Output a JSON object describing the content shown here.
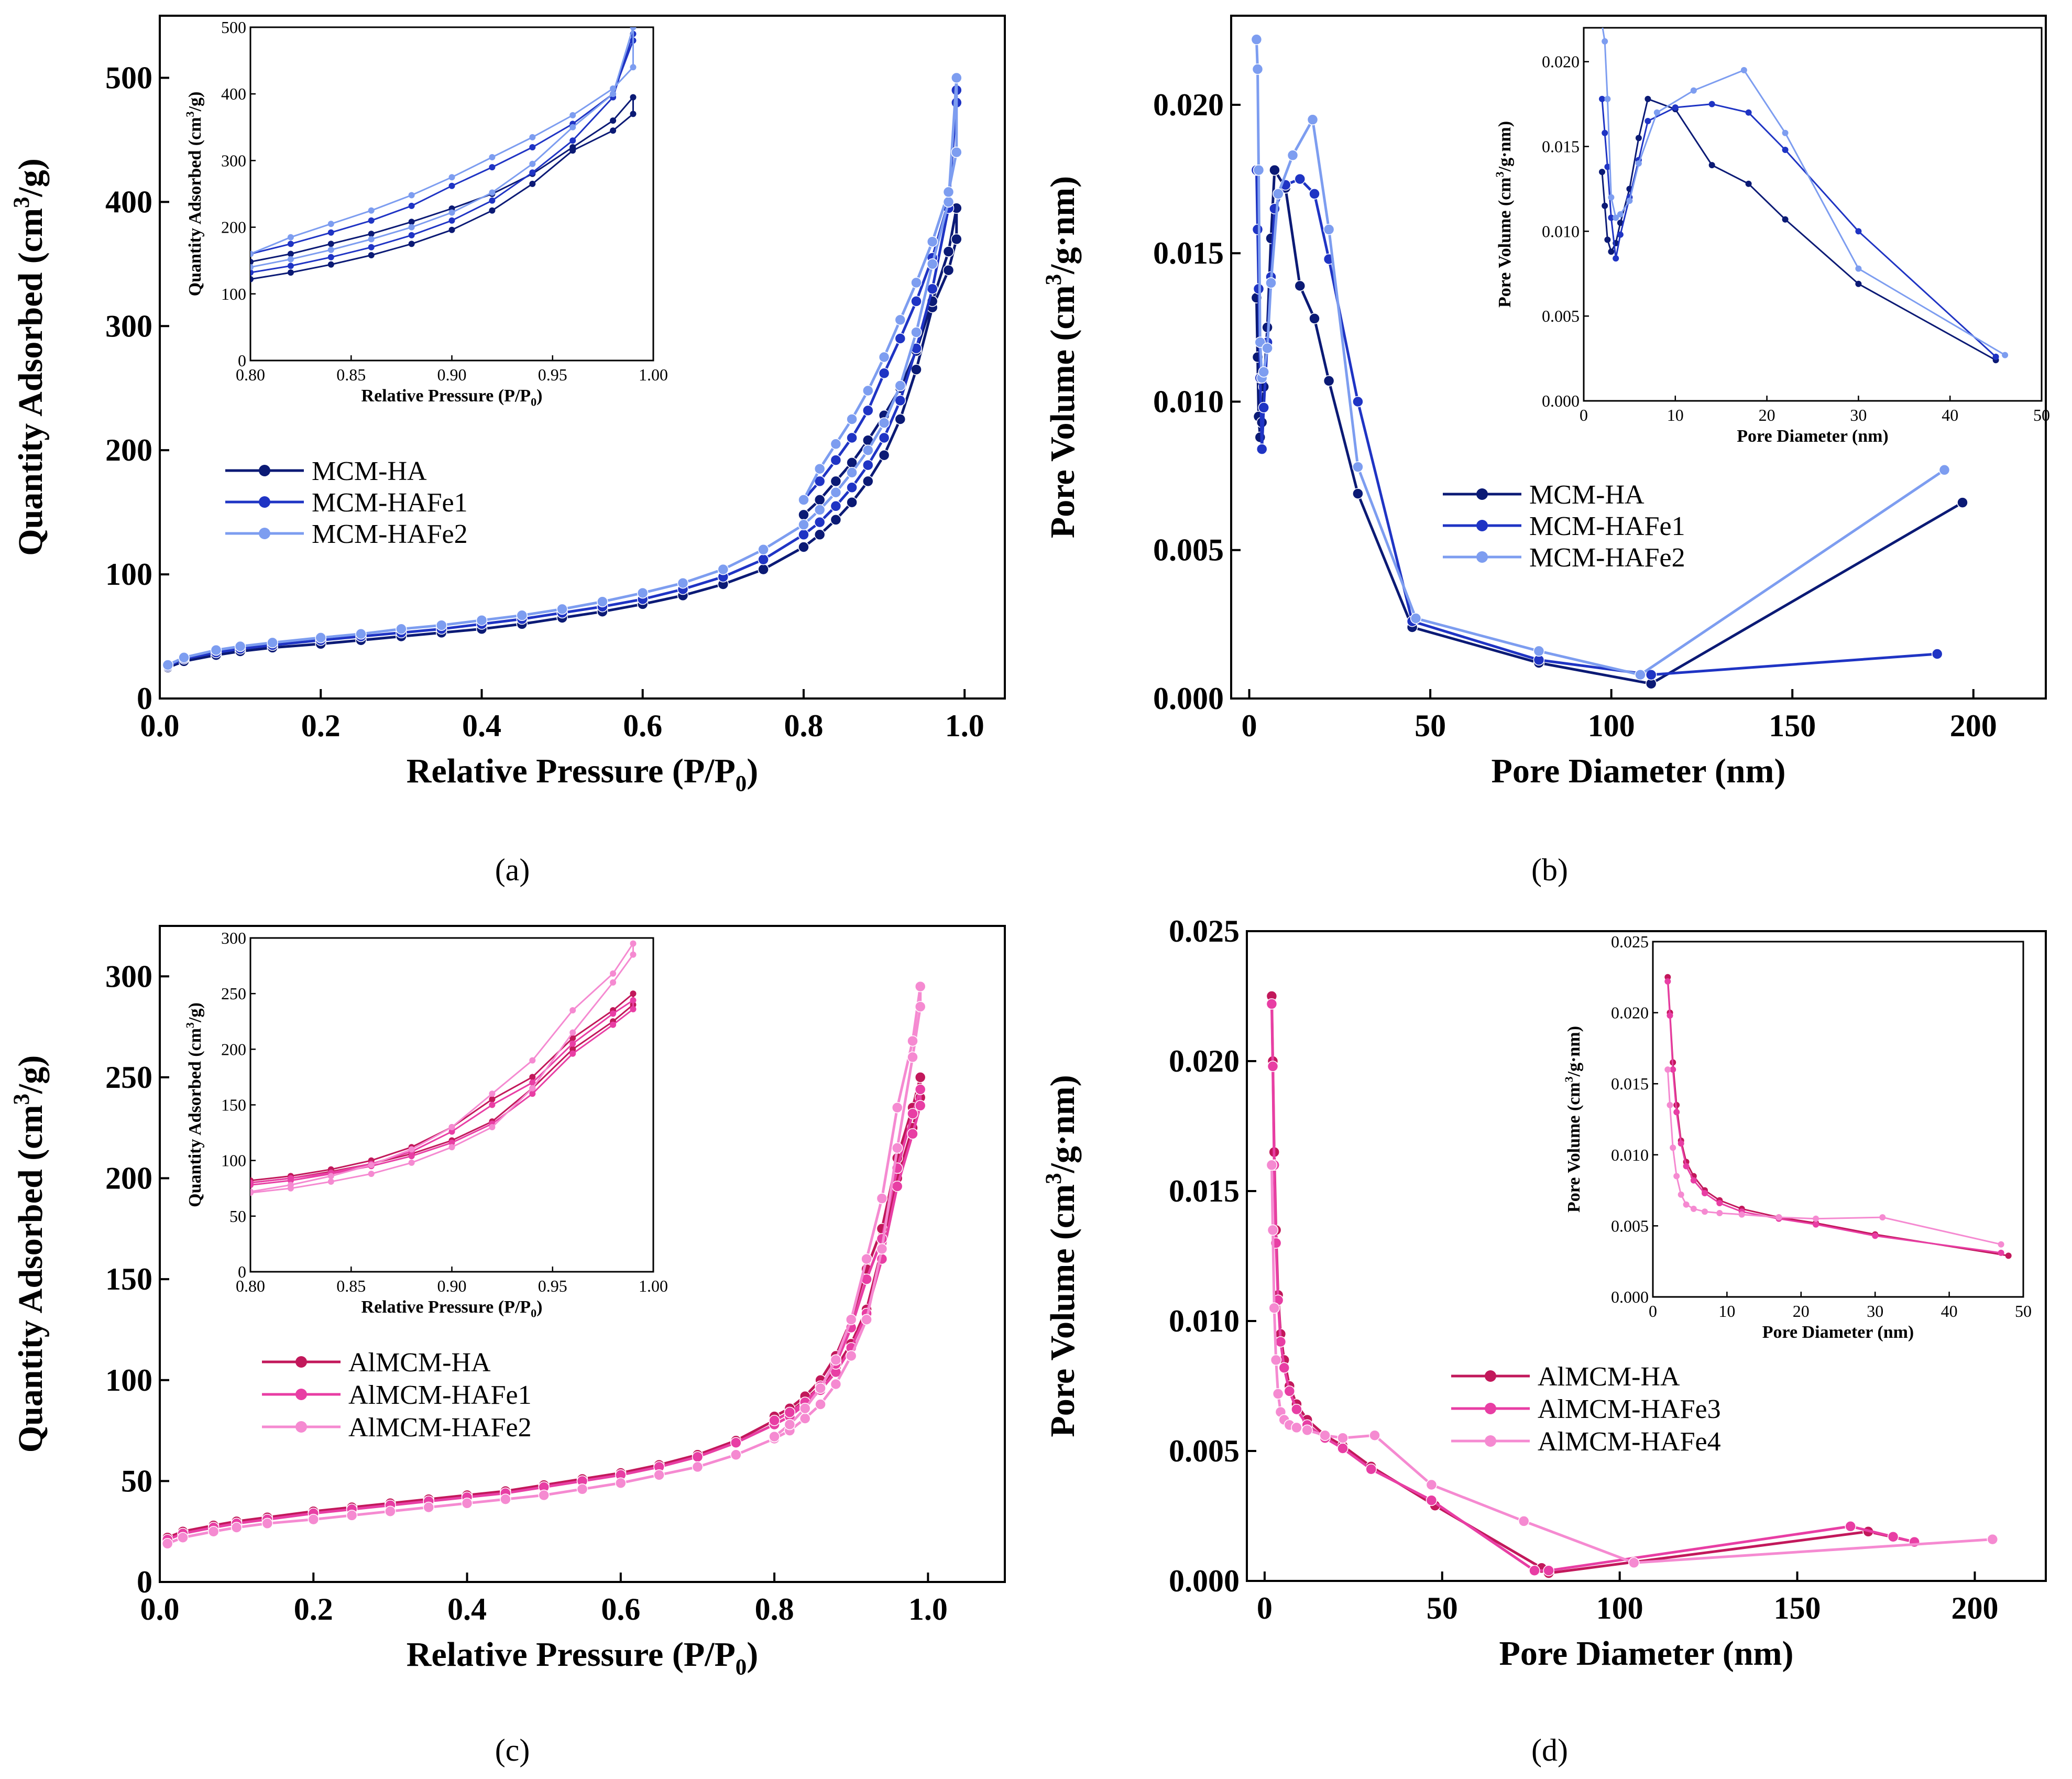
{
  "colors": {
    "mcm_ha": "#0b1a75",
    "mcm_hafe1": "#1f34c4",
    "mcm_hafe2": "#7d9df0",
    "al_ha": "#c2185b",
    "al_hafe1": "#e83ea4",
    "al_hafe2": "#f58ad1"
  },
  "panel_labels": {
    "a": "(a)",
    "b": "(b)",
    "c": "(c)",
    "d": "(d)"
  },
  "chart_data": [
    {
      "id": "a",
      "type": "line",
      "title": "",
      "xlabel": "Relative Pressure (P/P0)",
      "ylabel": "Quantity Adsorbed (cm3/g)",
      "xlim": [
        0,
        1.05
      ],
      "ylim": [
        0,
        550
      ],
      "xticks": [
        "0.0",
        "0.2",
        "0.4",
        "0.6",
        "0.8",
        "1.0"
      ],
      "yticks": [
        "0",
        "100",
        "200",
        "300",
        "400",
        "500"
      ],
      "legend": [
        "MCM-HA",
        "MCM-HAFe1",
        "MCM-HAFe2"
      ],
      "series": [
        {
          "name": "MCM-HA",
          "color_key": "mcm_ha",
          "x": [
            0.01,
            0.03,
            0.07,
            0.1,
            0.14,
            0.2,
            0.25,
            0.3,
            0.35,
            0.4,
            0.45,
            0.5,
            0.55,
            0.6,
            0.65,
            0.7,
            0.75,
            0.8,
            0.82,
            0.84,
            0.86,
            0.88,
            0.9,
            0.92,
            0.94,
            0.96,
            0.98,
            0.99,
            0.99,
            0.98,
            0.96,
            0.94,
            0.92,
            0.9,
            0.88,
            0.86,
            0.84,
            0.82,
            0.8
          ],
          "y": [
            25,
            30,
            35,
            38,
            41,
            44,
            47,
            50,
            53,
            56,
            60,
            65,
            70,
            76,
            83,
            92,
            104,
            122,
            132,
            144,
            158,
            175,
            196,
            225,
            265,
            315,
            345,
            370,
            395,
            360,
            320,
            280,
            250,
            228,
            208,
            190,
            175,
            160,
            148
          ]
        },
        {
          "name": "MCM-HAFe1",
          "color_key": "mcm_hafe1",
          "x": [
            0.01,
            0.03,
            0.07,
            0.1,
            0.14,
            0.2,
            0.25,
            0.3,
            0.35,
            0.4,
            0.45,
            0.5,
            0.55,
            0.6,
            0.65,
            0.7,
            0.75,
            0.8,
            0.82,
            0.84,
            0.86,
            0.88,
            0.9,
            0.92,
            0.94,
            0.96,
            0.98,
            0.99,
            0.99,
            0.98,
            0.96,
            0.94,
            0.92,
            0.9,
            0.88,
            0.86,
            0.84,
            0.82,
            0.8
          ],
          "y": [
            26,
            32,
            37,
            40,
            43,
            47,
            50,
            53,
            56,
            60,
            64,
            69,
            74,
            80,
            88,
            98,
            112,
            132,
            142,
            155,
            170,
            188,
            210,
            240,
            282,
            330,
            395,
            490,
            480,
            400,
            355,
            320,
            290,
            262,
            232,
            210,
            192,
            175,
            160
          ]
        },
        {
          "name": "MCM-HAFe2",
          "color_key": "mcm_hafe2",
          "x": [
            0.01,
            0.03,
            0.07,
            0.1,
            0.14,
            0.2,
            0.25,
            0.3,
            0.35,
            0.4,
            0.45,
            0.5,
            0.55,
            0.6,
            0.65,
            0.7,
            0.75,
            0.8,
            0.82,
            0.84,
            0.86,
            0.88,
            0.9,
            0.92,
            0.94,
            0.96,
            0.98,
            0.99,
            0.99,
            0.98,
            0.96,
            0.94,
            0.92,
            0.9,
            0.88,
            0.86,
            0.84,
            0.82,
            0.8
          ],
          "y": [
            27,
            33,
            39,
            42,
            45,
            49,
            52,
            56,
            59,
            63,
            67,
            72,
            78,
            85,
            93,
            104,
            120,
            140,
            152,
            166,
            182,
            200,
            222,
            252,
            295,
            350,
            400,
            500,
            440,
            408,
            368,
            335,
            305,
            275,
            248,
            225,
            205,
            185,
            160
          ]
        }
      ],
      "inset": {
        "xlim": [
          0.8,
          1.0
        ],
        "ylim": [
          0,
          500
        ],
        "xticks": [
          "0.80",
          "0.85",
          "0.90",
          "0.95",
          "1.00"
        ],
        "yticks": [
          "0",
          "100",
          "200",
          "300",
          "400",
          "500"
        ],
        "xlabel": "Relative Pressure (P/P0)",
        "ylabel": "Quantity Adsorbed (cm3/g)"
      }
    },
    {
      "id": "b",
      "type": "line",
      "title": "",
      "xlabel": "Pore Diameter (nm)",
      "ylabel": "Pore Volume (cm3/g·nm)",
      "xlim": [
        -5,
        220
      ],
      "ylim": [
        0,
        0.023
      ],
      "xticks": [
        "0",
        "50",
        "100",
        "150",
        "200"
      ],
      "yticks": [
        "0.000",
        "0.005",
        "0.010",
        "0.015",
        "0.020"
      ],
      "legend": [
        "MCM-HA",
        "MCM-HAFe1",
        "MCM-HAFe2"
      ],
      "series": [
        {
          "name": "MCM-HA",
          "color_key": "mcm_ha",
          "x": [
            2,
            2.3,
            2.6,
            3,
            3.5,
            4,
            5,
            6,
            7,
            10,
            14,
            18,
            22,
            30,
            45,
            80,
            111,
            197
          ],
          "y": [
            0.0135,
            0.0115,
            0.0095,
            0.0088,
            0.0093,
            0.0105,
            0.0125,
            0.0155,
            0.0178,
            0.0172,
            0.0139,
            0.0128,
            0.0107,
            0.0069,
            0.0024,
            0.0012,
            0.0005,
            0.0066
          ]
        },
        {
          "name": "MCM-HAFe1",
          "color_key": "mcm_hafe1",
          "x": [
            2,
            2.3,
            2.6,
            3,
            3.5,
            4,
            5,
            6,
            7,
            10,
            14,
            18,
            22,
            30,
            45,
            80,
            111,
            190
          ],
          "y": [
            0.0178,
            0.0158,
            0.0138,
            0.0108,
            0.0084,
            0.0098,
            0.012,
            0.0142,
            0.0165,
            0.0173,
            0.0175,
            0.017,
            0.0148,
            0.01,
            0.0026,
            0.0013,
            0.0008,
            0.0015
          ]
        },
        {
          "name": "MCM-HAFe2",
          "color_key": "mcm_hafe2",
          "x": [
            2,
            2.3,
            2.6,
            3,
            3.5,
            4,
            5,
            6,
            8,
            12,
            17.5,
            22,
            30,
            46,
            80,
            108,
            192
          ],
          "y": [
            0.0222,
            0.0212,
            0.0178,
            0.012,
            0.0108,
            0.011,
            0.0118,
            0.014,
            0.017,
            0.0183,
            0.0195,
            0.0158,
            0.0078,
            0.0027,
            0.0016,
            0.0008,
            0.0077
          ]
        }
      ],
      "inset": {
        "xlim": [
          0,
          50
        ],
        "ylim": [
          0,
          0.022
        ],
        "xticks": [
          "0",
          "10",
          "20",
          "30",
          "40",
          "50"
        ],
        "yticks": [
          "0.000",
          "0.005",
          "0.010",
          "0.015",
          "0.020"
        ],
        "xlabel": "Pore Diameter (nm)",
        "ylabel": "Pore Volume (cm3/g·nm)"
      }
    },
    {
      "id": "c",
      "type": "line",
      "title": "",
      "xlabel": "Relative Pressure (P/P0)",
      "ylabel": "Quantity Adsorbed (cm3/g)",
      "xlim": [
        0,
        1.1
      ],
      "ylim": [
        0,
        325
      ],
      "xticks": [
        "0.0",
        "0.2",
        "0.4",
        "0.6",
        "0.8",
        "1.0"
      ],
      "yticks": [
        "0",
        "50",
        "100",
        "150",
        "200",
        "250",
        "300"
      ],
      "legend": [
        "AlMCM-HA",
        "AlMCM-HAFe1",
        "AlMCM-HAFe2"
      ],
      "series": [
        {
          "name": "AlMCM-HA",
          "color_key": "al_ha",
          "x": [
            0.01,
            0.03,
            0.07,
            0.1,
            0.14,
            0.2,
            0.25,
            0.3,
            0.35,
            0.4,
            0.45,
            0.5,
            0.55,
            0.6,
            0.65,
            0.7,
            0.75,
            0.8,
            0.82,
            0.84,
            0.86,
            0.88,
            0.9,
            0.92,
            0.94,
            0.96,
            0.98,
            0.99,
            0.99,
            0.98,
            0.96,
            0.94,
            0.92,
            0.9,
            0.88,
            0.86,
            0.84,
            0.82,
            0.8
          ],
          "y": [
            22,
            25,
            28,
            30,
            32,
            35,
            37,
            39,
            41,
            43,
            45,
            48,
            51,
            54,
            58,
            63,
            70,
            80,
            84,
            90,
            97,
            106,
            118,
            135,
            165,
            200,
            225,
            240,
            250,
            235,
            210,
            175,
            155,
            130,
            112,
            100,
            92,
            86,
            82
          ]
        },
        {
          "name": "AlMCM-HAFe1",
          "color_key": "al_hafe1",
          "x": [
            0.01,
            0.03,
            0.07,
            0.1,
            0.14,
            0.2,
            0.25,
            0.3,
            0.35,
            0.4,
            0.45,
            0.5,
            0.55,
            0.6,
            0.65,
            0.7,
            0.75,
            0.8,
            0.82,
            0.84,
            0.86,
            0.88,
            0.9,
            0.92,
            0.94,
            0.96,
            0.98,
            0.99,
            0.99,
            0.98,
            0.96,
            0.94,
            0.92,
            0.9,
            0.88,
            0.86,
            0.84,
            0.82,
            0.8
          ],
          "y": [
            21,
            24,
            27,
            29,
            31,
            34,
            36,
            38,
            40,
            42,
            44,
            47,
            50,
            53,
            57,
            62,
            69,
            78,
            82,
            88,
            95,
            104,
            116,
            133,
            160,
            196,
            222,
            236,
            244,
            232,
            205,
            170,
            150,
            126,
            108,
            97,
            89,
            84,
            80
          ]
        },
        {
          "name": "AlMCM-HAFe2",
          "color_key": "al_hafe2",
          "x": [
            0.01,
            0.03,
            0.07,
            0.1,
            0.14,
            0.2,
            0.25,
            0.3,
            0.35,
            0.4,
            0.45,
            0.5,
            0.55,
            0.6,
            0.65,
            0.7,
            0.75,
            0.8,
            0.82,
            0.84,
            0.86,
            0.88,
            0.9,
            0.92,
            0.94,
            0.96,
            0.98,
            0.99,
            0.99,
            0.98,
            0.96,
            0.94,
            0.92,
            0.9,
            0.88,
            0.86,
            0.84,
            0.82,
            0.8
          ],
          "y": [
            19,
            22,
            25,
            27,
            29,
            31,
            33,
            35,
            37,
            39,
            41,
            43,
            46,
            49,
            53,
            57,
            63,
            71,
            75,
            81,
            88,
            98,
            112,
            130,
            165,
            215,
            260,
            285,
            295,
            268,
            235,
            190,
            160,
            130,
            110,
            96,
            86,
            78,
            72
          ]
        }
      ],
      "inset": {
        "xlim": [
          0.8,
          1.0
        ],
        "ylim": [
          0,
          300
        ],
        "xticks": [
          "0.80",
          "0.85",
          "0.90",
          "0.95",
          "1.00"
        ],
        "yticks": [
          "0",
          "50",
          "100",
          "150",
          "200",
          "250",
          "300"
        ],
        "xlabel": "Relative Pressure (P/P0)",
        "ylabel": "Quantity Adsorbed (cm3/g)"
      }
    },
    {
      "id": "d",
      "type": "line",
      "title": "",
      "xlabel": "Pore Diameter (nm)",
      "ylabel": "Pore  Volume (cm3/g·nm)",
      "xlim": [
        -5,
        220
      ],
      "ylim": [
        0,
        0.025
      ],
      "xticks": [
        "0",
        "50",
        "100",
        "150",
        "200"
      ],
      "yticks": [
        "0.000",
        "0.005",
        "0.010",
        "0.015",
        "0.020",
        "0.025"
      ],
      "legend": [
        "AlMCM-HA",
        "AlMCM-HAFe3",
        "AlMCM-HAFe4"
      ],
      "series": [
        {
          "name": "AlMCM-HA",
          "color_key": "al_ha",
          "x": [
            2,
            2.3,
            2.7,
            3.2,
            3.8,
            4.5,
            5.5,
            7,
            9,
            12,
            17,
            22,
            30,
            48,
            78,
            80,
            170,
            183
          ],
          "y": [
            0.0225,
            0.02,
            0.0165,
            0.0135,
            0.011,
            0.0095,
            0.0085,
            0.0075,
            0.0068,
            0.0062,
            0.0056,
            0.0052,
            0.0044,
            0.0029,
            0.0005,
            0.0003,
            0.0019,
            0.0015
          ]
        },
        {
          "name": "AlMCM-HAFe3",
          "color_key": "al_hafe1",
          "x": [
            2,
            2.3,
            2.7,
            3.2,
            3.8,
            4.5,
            5.5,
            7,
            9,
            12,
            17,
            22,
            30,
            47,
            76,
            80,
            165,
            177,
            183
          ],
          "y": [
            0.0222,
            0.0198,
            0.016,
            0.013,
            0.0108,
            0.0092,
            0.0082,
            0.0073,
            0.0066,
            0.006,
            0.0055,
            0.0051,
            0.0043,
            0.0031,
            0.0004,
            0.0004,
            0.0021,
            0.0017,
            0.0015
          ]
        },
        {
          "name": "AlMCM-HAFe4",
          "color_key": "al_hafe2",
          "x": [
            2,
            2.3,
            2.7,
            3.2,
            3.8,
            4.5,
            5.5,
            7,
            9,
            12,
            17,
            22,
            31,
            47,
            73,
            104,
            205
          ],
          "y": [
            0.016,
            0.0135,
            0.0105,
            0.0085,
            0.0072,
            0.0065,
            0.0062,
            0.006,
            0.0059,
            0.0058,
            0.0056,
            0.0055,
            0.0056,
            0.0037,
            0.0023,
            0.0007,
            0.0016
          ]
        }
      ],
      "inset": {
        "xlim": [
          0,
          50
        ],
        "ylim": [
          0,
          0.025
        ],
        "xticks": [
          "0",
          "10",
          "20",
          "30",
          "40",
          "50"
        ],
        "yticks": [
          "0.000",
          "0.005",
          "0.010",
          "0.015",
          "0.020",
          "0.025"
        ],
        "xlabel": "Pore Diameter (nm)",
        "ylabel": "Pore Volume (cm3/g·nm)"
      }
    }
  ]
}
